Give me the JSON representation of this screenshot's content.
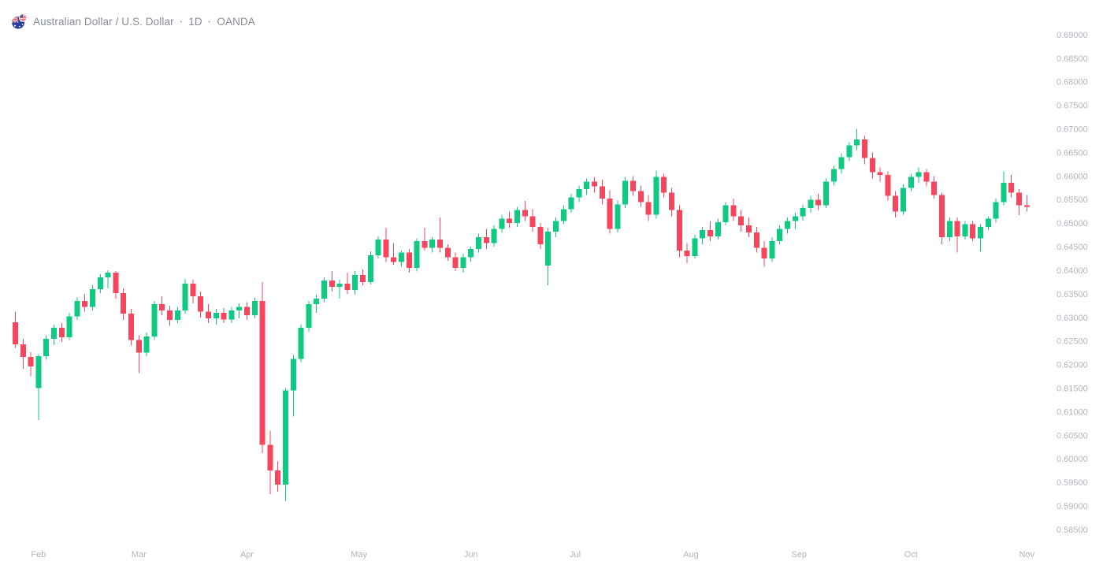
{
  "header": {
    "symbol_title": "Australian Dollar / U.S. Dollar",
    "separator": "·",
    "interval": "1D",
    "exchange": "OANDA"
  },
  "colors": {
    "up": "#0ecb81",
    "down": "#f6465d",
    "axis_text": "#b2b5be",
    "title_text": "#878d98",
    "background": "#ffffff"
  },
  "chart_data": {
    "type": "candlestick",
    "title": "Australian Dollar / U.S. Dollar · 1D · OANDA",
    "symbol": "AUD/USD",
    "legend_position": "top-left",
    "grid": false,
    "y_axis": {
      "side": "right",
      "min": 0.585,
      "max": 0.69,
      "tick_step": 0.005,
      "ticks": [
        "0.69000",
        "0.68500",
        "0.68000",
        "0.67500",
        "0.67000",
        "0.66500",
        "0.66000",
        "0.65500",
        "0.65000",
        "0.64500",
        "0.64000",
        "0.63500",
        "0.63000",
        "0.62500",
        "0.62000",
        "0.61500",
        "0.61000",
        "0.60500",
        "0.60000",
        "0.59500",
        "0.59000",
        "0.58500"
      ]
    },
    "x_axis": {
      "months": [
        {
          "label": "Feb",
          "index": 3
        },
        {
          "label": "Mar",
          "index": 16
        },
        {
          "label": "Apr",
          "index": 30
        },
        {
          "label": "May",
          "index": 44.5
        },
        {
          "label": "Jun",
          "index": 59
        },
        {
          "label": "Jul",
          "index": 72.5
        },
        {
          "label": "Aug",
          "index": 87.5
        },
        {
          "label": "Sep",
          "index": 101.5
        },
        {
          "label": "Oct",
          "index": 116
        },
        {
          "label": "Nov",
          "index": 131
        }
      ]
    },
    "candles_format": [
      "open",
      "high",
      "low",
      "close"
    ],
    "candles": [
      [
        0.629,
        0.6312,
        0.6235,
        0.6243
      ],
      [
        0.6243,
        0.6255,
        0.619,
        0.6216
      ],
      [
        0.6216,
        0.6226,
        0.6175,
        0.6196
      ],
      [
        0.615,
        0.6222,
        0.6082,
        0.6218
      ],
      [
        0.6218,
        0.6262,
        0.621,
        0.6255
      ],
      [
        0.6255,
        0.6285,
        0.6242,
        0.6278
      ],
      [
        0.6278,
        0.6288,
        0.6248,
        0.6258
      ],
      [
        0.6258,
        0.631,
        0.6252,
        0.6302
      ],
      [
        0.6302,
        0.6342,
        0.6295,
        0.6335
      ],
      [
        0.6335,
        0.635,
        0.6312,
        0.6322
      ],
      [
        0.6322,
        0.6368,
        0.6315,
        0.636
      ],
      [
        0.636,
        0.6392,
        0.6352,
        0.6385
      ],
      [
        0.6385,
        0.64,
        0.6362,
        0.6395
      ],
      [
        0.6395,
        0.6398,
        0.634,
        0.6352
      ],
      [
        0.6352,
        0.6362,
        0.6295,
        0.6308
      ],
      [
        0.6308,
        0.6318,
        0.624,
        0.6252
      ],
      [
        0.6252,
        0.6262,
        0.6182,
        0.6225
      ],
      [
        0.6225,
        0.6268,
        0.6218,
        0.626
      ],
      [
        0.626,
        0.6335,
        0.6252,
        0.6328
      ],
      [
        0.6328,
        0.6345,
        0.6305,
        0.6315
      ],
      [
        0.6315,
        0.6325,
        0.6282,
        0.6295
      ],
      [
        0.6295,
        0.6322,
        0.6288,
        0.6315
      ],
      [
        0.6315,
        0.6382,
        0.6308,
        0.6372
      ],
      [
        0.6372,
        0.638,
        0.633,
        0.6345
      ],
      [
        0.6345,
        0.6355,
        0.63,
        0.6312
      ],
      [
        0.6312,
        0.6328,
        0.6288,
        0.6298
      ],
      [
        0.6298,
        0.6318,
        0.6285,
        0.631
      ],
      [
        0.631,
        0.632,
        0.6288,
        0.6296
      ],
      [
        0.6296,
        0.6322,
        0.6288,
        0.6315
      ],
      [
        0.6315,
        0.633,
        0.6298,
        0.6322
      ],
      [
        0.6322,
        0.6332,
        0.6295,
        0.6305
      ],
      [
        0.6305,
        0.6342,
        0.6298,
        0.6335
      ],
      [
        0.6335,
        0.6375,
        0.6012,
        0.603
      ],
      [
        0.603,
        0.606,
        0.5925,
        0.5975
      ],
      [
        0.5975,
        0.5995,
        0.593,
        0.5945
      ],
      [
        0.5945,
        0.615,
        0.591,
        0.6145
      ],
      [
        0.6145,
        0.622,
        0.609,
        0.6212
      ],
      [
        0.6212,
        0.6285,
        0.6205,
        0.6278
      ],
      [
        0.6278,
        0.6335,
        0.627,
        0.6328
      ],
      [
        0.6328,
        0.6348,
        0.631,
        0.634
      ],
      [
        0.634,
        0.6385,
        0.6332,
        0.6378
      ],
      [
        0.6378,
        0.6398,
        0.6355,
        0.6365
      ],
      [
        0.6365,
        0.638,
        0.634,
        0.6372
      ],
      [
        0.6372,
        0.6395,
        0.635,
        0.6358
      ],
      [
        0.6358,
        0.6398,
        0.6348,
        0.639
      ],
      [
        0.639,
        0.6402,
        0.6368,
        0.6375
      ],
      [
        0.6375,
        0.644,
        0.637,
        0.6432
      ],
      [
        0.6432,
        0.6472,
        0.6425,
        0.6465
      ],
      [
        0.6465,
        0.649,
        0.6418,
        0.6428
      ],
      [
        0.6428,
        0.6458,
        0.6412,
        0.6418
      ],
      [
        0.6418,
        0.6442,
        0.6408,
        0.6438
      ],
      [
        0.6438,
        0.6445,
        0.6395,
        0.6405
      ],
      [
        0.6405,
        0.6468,
        0.6398,
        0.6462
      ],
      [
        0.6462,
        0.649,
        0.6442,
        0.6448
      ],
      [
        0.6448,
        0.647,
        0.6438,
        0.6465
      ],
      [
        0.6465,
        0.6512,
        0.6438,
        0.6448
      ],
      [
        0.6448,
        0.6455,
        0.642,
        0.6428
      ],
      [
        0.6428,
        0.6438,
        0.6398,
        0.6405
      ],
      [
        0.6405,
        0.6435,
        0.6395,
        0.6428
      ],
      [
        0.6428,
        0.645,
        0.6418,
        0.6445
      ],
      [
        0.6445,
        0.6478,
        0.6438,
        0.647
      ],
      [
        0.647,
        0.6488,
        0.6445,
        0.6458
      ],
      [
        0.6458,
        0.6495,
        0.645,
        0.6488
      ],
      [
        0.6488,
        0.6518,
        0.648,
        0.651
      ],
      [
        0.651,
        0.6525,
        0.649,
        0.65
      ],
      [
        0.65,
        0.6535,
        0.6492,
        0.6528
      ],
      [
        0.6528,
        0.6547,
        0.6505,
        0.6515
      ],
      [
        0.6515,
        0.653,
        0.6482,
        0.6492
      ],
      [
        0.6492,
        0.65,
        0.6445,
        0.6455
      ],
      [
        0.641,
        0.649,
        0.6368,
        0.6482
      ],
      [
        0.6482,
        0.6512,
        0.647,
        0.6505
      ],
      [
        0.6505,
        0.6538,
        0.6498,
        0.653
      ],
      [
        0.653,
        0.6562,
        0.6522,
        0.6555
      ],
      [
        0.6555,
        0.658,
        0.6545,
        0.6572
      ],
      [
        0.6572,
        0.6595,
        0.656,
        0.6588
      ],
      [
        0.6588,
        0.6598,
        0.6565,
        0.6578
      ],
      [
        0.6578,
        0.6592,
        0.654,
        0.6552
      ],
      [
        0.6552,
        0.657,
        0.6478,
        0.6488
      ],
      [
        0.6488,
        0.6548,
        0.648,
        0.654
      ],
      [
        0.654,
        0.6598,
        0.6532,
        0.659
      ],
      [
        0.659,
        0.66,
        0.6558,
        0.6568
      ],
      [
        0.6568,
        0.658,
        0.6535,
        0.6545
      ],
      [
        0.6545,
        0.656,
        0.6505,
        0.6518
      ],
      [
        0.6518,
        0.6612,
        0.651,
        0.6598
      ],
      [
        0.6598,
        0.6605,
        0.6555,
        0.6565
      ],
      [
        0.6565,
        0.6575,
        0.6515,
        0.6528
      ],
      [
        0.6528,
        0.6538,
        0.6428,
        0.6442
      ],
      [
        0.6442,
        0.6458,
        0.6415,
        0.643
      ],
      [
        0.643,
        0.6475,
        0.6425,
        0.6468
      ],
      [
        0.6468,
        0.6492,
        0.6455,
        0.6485
      ],
      [
        0.6485,
        0.6505,
        0.6462,
        0.6472
      ],
      [
        0.6472,
        0.651,
        0.6465,
        0.6502
      ],
      [
        0.6502,
        0.6545,
        0.6495,
        0.6538
      ],
      [
        0.6538,
        0.6552,
        0.6505,
        0.6515
      ],
      [
        0.6515,
        0.6528,
        0.6482,
        0.6495
      ],
      [
        0.6495,
        0.6512,
        0.647,
        0.648
      ],
      [
        0.648,
        0.6492,
        0.6438,
        0.6448
      ],
      [
        0.6448,
        0.6462,
        0.6408,
        0.6425
      ],
      [
        0.6425,
        0.647,
        0.6418,
        0.6462
      ],
      [
        0.6462,
        0.6495,
        0.6455,
        0.6488
      ],
      [
        0.6488,
        0.6512,
        0.6478,
        0.6505
      ],
      [
        0.6505,
        0.6522,
        0.6488,
        0.6515
      ],
      [
        0.6515,
        0.654,
        0.6505,
        0.6532
      ],
      [
        0.6532,
        0.6558,
        0.6522,
        0.655
      ],
      [
        0.655,
        0.6562,
        0.6528,
        0.6538
      ],
      [
        0.6538,
        0.6595,
        0.6532,
        0.6588
      ],
      [
        0.6588,
        0.6622,
        0.658,
        0.6615
      ],
      [
        0.6615,
        0.6648,
        0.6605,
        0.664
      ],
      [
        0.664,
        0.6672,
        0.6632,
        0.6665
      ],
      [
        0.6665,
        0.67,
        0.6655,
        0.6678
      ],
      [
        0.6678,
        0.6685,
        0.6625,
        0.6638
      ],
      [
        0.6638,
        0.665,
        0.6595,
        0.6608
      ],
      [
        0.6608,
        0.6618,
        0.6588,
        0.6602
      ],
      [
        0.6602,
        0.661,
        0.6548,
        0.6558
      ],
      [
        0.6558,
        0.6568,
        0.6512,
        0.6525
      ],
      [
        0.6525,
        0.6582,
        0.6518,
        0.6575
      ],
      [
        0.6575,
        0.6605,
        0.6568,
        0.6598
      ],
      [
        0.6598,
        0.6618,
        0.6585,
        0.6608
      ],
      [
        0.6608,
        0.6615,
        0.6578,
        0.6588
      ],
      [
        0.6588,
        0.66,
        0.6552,
        0.656
      ],
      [
        0.656,
        0.6565,
        0.6455,
        0.647
      ],
      [
        0.647,
        0.6512,
        0.6462,
        0.6505
      ],
      [
        0.6505,
        0.6512,
        0.6438,
        0.6472
      ],
      [
        0.6472,
        0.6505,
        0.6465,
        0.6498
      ],
      [
        0.6498,
        0.6505,
        0.6462,
        0.6468
      ],
      [
        0.6468,
        0.6498,
        0.644,
        0.6492
      ],
      [
        0.6492,
        0.6515,
        0.6485,
        0.651
      ],
      [
        0.651,
        0.6552,
        0.6502,
        0.6545
      ],
      [
        0.6545,
        0.661,
        0.6538,
        0.6586
      ],
      [
        0.6586,
        0.6602,
        0.6555,
        0.6565
      ],
      [
        0.6565,
        0.6572,
        0.6517,
        0.6538
      ],
      [
        0.6538,
        0.656,
        0.6525,
        0.6535
      ]
    ]
  }
}
